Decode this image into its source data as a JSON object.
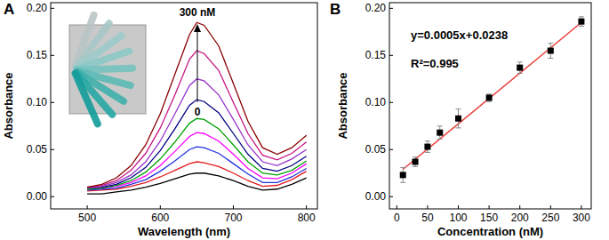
{
  "chart_data": [
    {
      "type": "line",
      "title": "A",
      "x_label": "Wavelength (nm)",
      "y_label": "Absorbance",
      "annotations": [
        "300 nM",
        "0"
      ],
      "x": [
        500,
        520,
        540,
        560,
        580,
        600,
        620,
        640,
        650,
        660,
        680,
        700,
        720,
        740,
        760,
        780,
        800
      ],
      "xlim": [
        450,
        815
      ],
      "xticks": [
        500,
        600,
        700,
        800
      ],
      "ylim": [
        -0.013,
        0.206
      ],
      "yticks": [
        {
          "value": 0,
          "label": "0.00"
        },
        {
          "value": 0.05,
          "label": "0.05"
        },
        {
          "value": 0.1,
          "label": "0.10"
        },
        {
          "value": 0.15,
          "label": "0.15"
        },
        {
          "value": 0.2,
          "label": "0.20"
        }
      ],
      "series": [
        {
          "color": "#000000",
          "values": [
            0.003,
            0.003,
            0.005,
            0.007,
            0.01,
            0.014,
            0.019,
            0.024,
            0.025,
            0.025,
            0.022,
            0.017,
            0.011,
            0.007,
            0.008,
            0.013,
            0.02
          ]
        },
        {
          "color": "#e41a1c",
          "values": [
            0.006,
            0.007,
            0.008,
            0.011,
            0.015,
            0.021,
            0.028,
            0.035,
            0.037,
            0.036,
            0.032,
            0.025,
            0.017,
            0.011,
            0.012,
            0.018,
            0.027
          ]
        },
        {
          "color": "#2233dd",
          "values": [
            0.007,
            0.008,
            0.009,
            0.013,
            0.018,
            0.027,
            0.038,
            0.05,
            0.053,
            0.052,
            0.046,
            0.035,
            0.024,
            0.015,
            0.015,
            0.021,
            0.03
          ]
        },
        {
          "color": "#ff00ff",
          "values": [
            0.008,
            0.009,
            0.011,
            0.015,
            0.022,
            0.033,
            0.048,
            0.064,
            0.068,
            0.067,
            0.059,
            0.045,
            0.03,
            0.02,
            0.019,
            0.025,
            0.035
          ]
        },
        {
          "color": "#00a000",
          "values": [
            0.008,
            0.009,
            0.012,
            0.017,
            0.026,
            0.04,
            0.058,
            0.078,
            0.083,
            0.082,
            0.072,
            0.055,
            0.037,
            0.025,
            0.023,
            0.028,
            0.038
          ]
        },
        {
          "color": "#000080",
          "values": [
            0.009,
            0.01,
            0.013,
            0.02,
            0.031,
            0.049,
            0.072,
            0.097,
            0.103,
            0.101,
            0.089,
            0.067,
            0.045,
            0.03,
            0.027,
            0.033,
            0.043
          ]
        },
        {
          "color": "#9932cc",
          "values": [
            0.009,
            0.011,
            0.015,
            0.023,
            0.037,
            0.059,
            0.088,
            0.118,
            0.125,
            0.123,
            0.108,
            0.082,
            0.055,
            0.037,
            0.033,
            0.04,
            0.05
          ]
        },
        {
          "color": "#c71585",
          "values": [
            0.01,
            0.012,
            0.017,
            0.028,
            0.046,
            0.073,
            0.108,
            0.146,
            0.155,
            0.152,
            0.134,
            0.1,
            0.067,
            0.044,
            0.039,
            0.046,
            0.058
          ]
        },
        {
          "color": "#8b0000",
          "values": [
            0.01,
            0.013,
            0.02,
            0.033,
            0.055,
            0.088,
            0.13,
            0.172,
            0.185,
            0.182,
            0.16,
            0.12,
            0.08,
            0.052,
            0.045,
            0.052,
            0.065
          ]
        }
      ]
    },
    {
      "type": "scatter",
      "title": "B",
      "x_label": "Concentration (nM)",
      "y_label": "Absorbance",
      "annotations": [
        "y=0.0005x+0.0238",
        "R²=0.995"
      ],
      "xlim": [
        -12,
        316
      ],
      "xticks": [
        0,
        50,
        100,
        150,
        200,
        250,
        300
      ],
      "ylim": [
        -0.013,
        0.206
      ],
      "yticks": [
        {
          "value": 0,
          "label": "0.00"
        },
        {
          "value": 0.05,
          "label": "0.05"
        },
        {
          "value": 0.1,
          "label": "0.10"
        },
        {
          "value": 0.15,
          "label": "0.15"
        },
        {
          "value": 0.2,
          "label": "0.20"
        }
      ],
      "series": [
        {
          "type": "scatter",
          "marker": "square",
          "color": "#000000",
          "x": [
            10,
            30,
            50,
            70,
            100,
            150,
            200,
            250,
            300
          ],
          "values": [
            0.023,
            0.037,
            0.053,
            0.068,
            0.083,
            0.105,
            0.137,
            0.155,
            0.186
          ],
          "errors": [
            0.008,
            0.005,
            0.006,
            0.007,
            0.01,
            0.004,
            0.006,
            0.008,
            0.005
          ]
        },
        {
          "type": "line",
          "color": "#e8413c",
          "x": [
            10,
            300
          ],
          "values": [
            0.029,
            0.185
          ]
        }
      ]
    }
  ]
}
